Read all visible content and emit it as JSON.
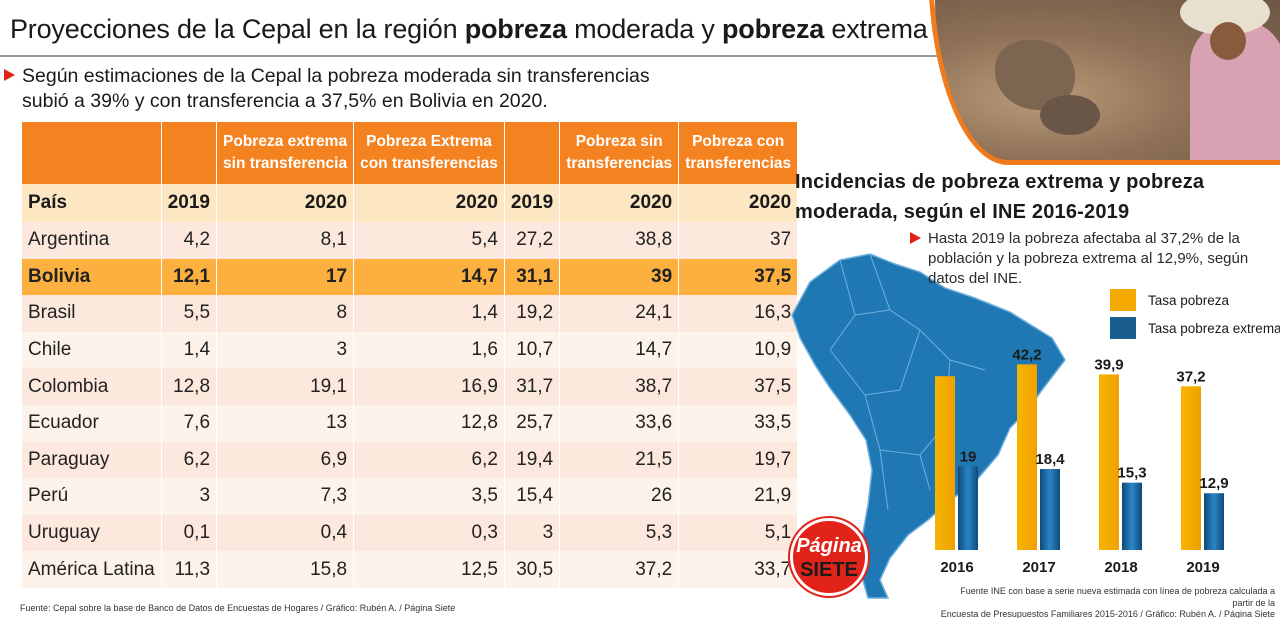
{
  "header": {
    "title_parts": [
      {
        "text": "Proyecciones de la Cepal en la región ",
        "bold": false
      },
      {
        "text": "pobreza",
        "bold": true
      },
      {
        "text": " moderada y ",
        "bold": false
      },
      {
        "text": "pobreza",
        "bold": true
      },
      {
        "text": " extrema",
        "bold": false
      }
    ],
    "subtitle_line1": "Según estimaciones de la Cepal la pobreza moderada  sin transferencias",
    "subtitle_line2": "subió a 39% y con transferencia a 37,5% en Bolivia en 2020."
  },
  "table": {
    "group_headers": [
      "",
      "",
      "Pobreza extrema\nsin transferencia",
      "Pobreza Extrema\ncon transferencias",
      "",
      "Pobreza sin\ntransferencias",
      "Pobreza con\ntransferencias"
    ],
    "year_headers": [
      "País",
      "2019",
      "2020",
      "2020",
      "2019",
      "2020",
      "2020"
    ],
    "rows": [
      {
        "pais": "Argentina",
        "values": [
          "4,2",
          "8,1",
          "5,4",
          "27,2",
          "38,8",
          "37"
        ],
        "highlight": false
      },
      {
        "pais": "Bolivia",
        "values": [
          "12,1",
          "17",
          "14,7",
          "31,1",
          "39",
          "37,5"
        ],
        "highlight": true
      },
      {
        "pais": "Brasil",
        "values": [
          "5,5",
          "8",
          "1,4",
          "19,2",
          "24,1",
          "16,3"
        ],
        "highlight": false
      },
      {
        "pais": "Chile",
        "values": [
          "1,4",
          "3",
          "1,6",
          "10,7",
          "14,7",
          "10,9"
        ],
        "highlight": false
      },
      {
        "pais": "Colombia",
        "values": [
          "12,8",
          "19,1",
          "16,9",
          "31,7",
          "38,7",
          "37,5"
        ],
        "highlight": false
      },
      {
        "pais": "Ecuador",
        "values": [
          "7,6",
          "13",
          "12,8",
          "25,7",
          "33,6",
          "33,5"
        ],
        "highlight": false
      },
      {
        "pais": "Paraguay",
        "values": [
          "6,2",
          "6,9",
          "6,2",
          "19,4",
          "21,5",
          "19,7"
        ],
        "highlight": false
      },
      {
        "pais": "Perú",
        "values": [
          "3",
          "7,3",
          "3,5",
          "15,4",
          "26",
          "21,9"
        ],
        "highlight": false
      },
      {
        "pais": "Uruguay",
        "values": [
          "0,1",
          "0,4",
          "0,3",
          "3",
          "5,3",
          "5,1"
        ],
        "highlight": false
      },
      {
        "pais": "América Latina",
        "values": [
          "11,3",
          "15,8",
          "12,5",
          "30,5",
          "37,2",
          "33,7"
        ],
        "highlight": false
      }
    ],
    "source": "Fuente: Cepal sobre la base de Banco de Datos de Encuestas de Hogares / Gráfico: Rubén A. / Página Siete"
  },
  "chart_panel": {
    "title_line1": "Incidencias de pobreza extrema y pobreza",
    "title_line2": "moderada, según el INE 2016-2019",
    "note": "Hasta 2019 la pobreza afectaba al 37,2% de la población y la pobreza extrema al 12,9%, según datos del INE.",
    "source_line1": "Fuente INE con base a serie nueva estimada con línea de pobreza calculada a partir de la",
    "source_line2": "Encuesta de Presupuestos Familiares 2015-2016 / Gráfico: Rubén A. / Página Siete"
  },
  "logo": {
    "line1": "Página",
    "line2": "SIETE"
  },
  "colors": {
    "accent_orange": "#f58220",
    "highlight_row": "#fbb040",
    "bar_pobreza": "#f5a800",
    "bar_extrema": "#1a5d8f",
    "marker_red": "#e2231a",
    "map_blue": "#1f78b4"
  },
  "chart_data": {
    "type": "bar",
    "title": "Incidencias de pobreza extrema y pobreza moderada, según el INE 2016-2019",
    "categories": [
      "2016",
      "2017",
      "2018",
      "2019"
    ],
    "series": [
      {
        "name": "Tasa pobreza",
        "values": [
          null,
          42.2,
          39.9,
          37.2
        ],
        "labels": [
          "",
          "42,2",
          "39,9",
          "37,2"
        ]
      },
      {
        "name": "Tasa pobreza extrema",
        "values": [
          19,
          18.4,
          15.3,
          12.9
        ],
        "labels": [
          "19",
          "18,4",
          "15,3",
          "12,9"
        ]
      }
    ],
    "estimated_values": {
      "Tasa pobreza": [
        39.5,
        null,
        null,
        null
      ]
    },
    "ylim": [
      0,
      50
    ],
    "legend": "top-right",
    "grid": false
  }
}
